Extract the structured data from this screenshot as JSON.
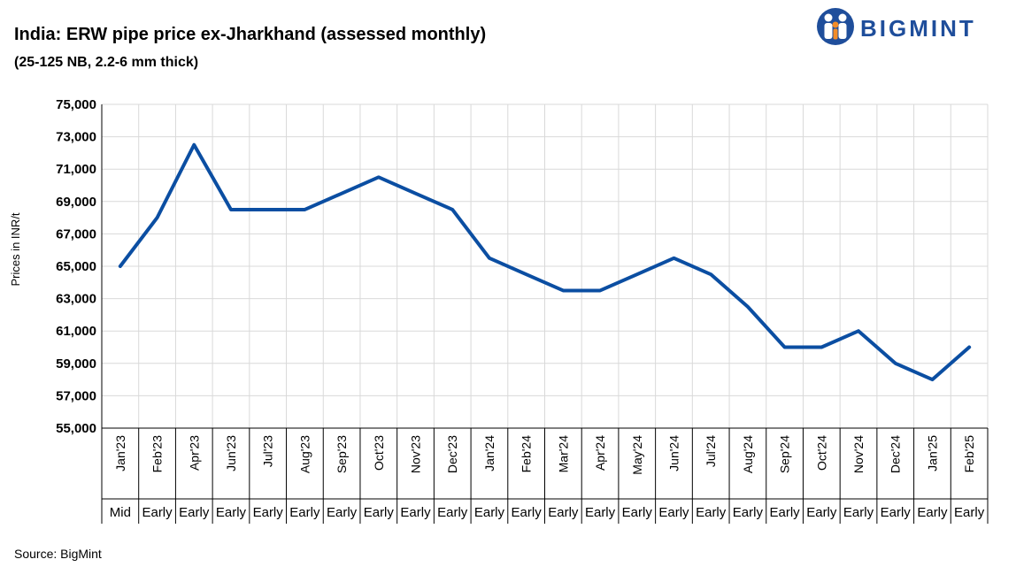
{
  "header": {
    "title": "India: ERW pipe price ex-Jharkhand  (assessed monthly)",
    "subtitle": "(25-125 NB, 2.2-6 mm thick)"
  },
  "logo": {
    "text": "BIGMINT",
    "icon": "bigmint-people-logo-icon"
  },
  "source": "Source: BigMint",
  "colors": {
    "line": "#0b4ea2",
    "grid": "#d9d9d9",
    "brand": "#1f4e9b"
  },
  "chart_data": {
    "type": "line",
    "title": "India: ERW pipe price ex-Jharkhand  (assessed monthly)",
    "subtitle": "(25-125 NB, 2.2-6 mm thick)",
    "xlabel": "",
    "ylabel": "Prices in INR/t",
    "ylim": [
      55000,
      75000
    ],
    "yticks": [
      55000,
      57000,
      59000,
      61000,
      63000,
      65000,
      67000,
      69000,
      71000,
      73000,
      75000
    ],
    "ytick_labels": [
      "55,000",
      "57,000",
      "59,000",
      "61,000",
      "63,000",
      "65,000",
      "67,000",
      "69,000",
      "71,000",
      "73,000",
      "75,000"
    ],
    "categories": [
      "Jan'23",
      "Feb'23",
      "Apr'23",
      "Jun'23",
      "Jul'23",
      "Aug'23",
      "Sep'23",
      "Oct'23",
      "Nov'23",
      "Dec'23",
      "Jan'24",
      "Feb'24",
      "Mar'24",
      "Apr'24",
      "May'24",
      "Jun'24",
      "Jul'24",
      "Aug'24",
      "Sep'24",
      "Oct'24",
      "Nov'24",
      "Dec'24",
      "Jan'25",
      "Feb'25"
    ],
    "sub_categories": [
      "Mid",
      "Early",
      "Early",
      "Early",
      "Early",
      "Early",
      "Early",
      "Early",
      "Early",
      "Early",
      "Early",
      "Early",
      "Early",
      "Early",
      "Early",
      "Early",
      "Early",
      "Early",
      "Early",
      "Early",
      "Early",
      "Early",
      "Early",
      "Early"
    ],
    "series": [
      {
        "name": "ERW pipe price",
        "values": [
          65000,
          68000,
          72500,
          68500,
          68500,
          68500,
          69500,
          70500,
          69500,
          68500,
          65500,
          64500,
          63500,
          63500,
          64500,
          65500,
          64500,
          62500,
          60000,
          60000,
          61000,
          59000,
          58000,
          60000
        ]
      }
    ],
    "grid": true,
    "legend": "none"
  }
}
